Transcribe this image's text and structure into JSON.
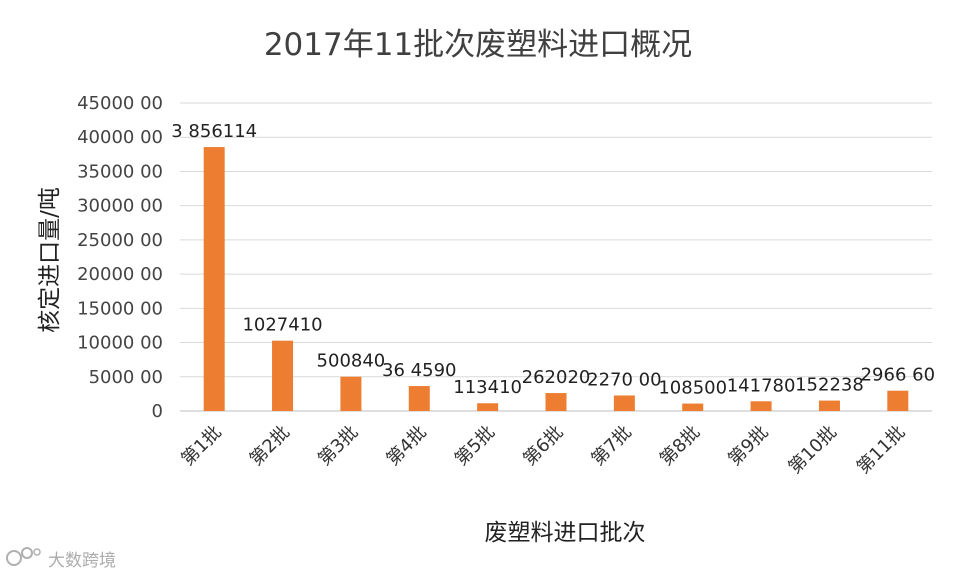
{
  "chart_data": {
    "type": "bar",
    "title": "2017年11批次废塑料进口概况",
    "xlabel": "废塑料进口批次",
    "ylabel": "核定进口量/吨",
    "ylim": [
      0,
      4500000
    ],
    "yticks": [
      0,
      500000,
      1000000,
      1500000,
      2000000,
      2500000,
      3000000,
      3500000,
      4000000,
      4500000
    ],
    "ytick_labels": [
      "0",
      "5000 00",
      "10000 00",
      "15000 00",
      "20000 00",
      "25000 00",
      "30000 00",
      "35000 00",
      "40000 00",
      "45000 00"
    ],
    "categories": [
      "第1批",
      "第2批",
      "第3批",
      "第4批",
      "第5批",
      "第6批",
      "第7批",
      "第8批",
      "第9批",
      "第10批",
      "第11批"
    ],
    "values": [
      3856114,
      1027410,
      500840,
      364590,
      113410,
      262020,
      227000,
      108500,
      141780,
      152238,
      296660
    ],
    "data_labels": [
      "3 856114",
      "1027410",
      "500840",
      "36 4590",
      "113410",
      "262020",
      "2270 00",
      "108500",
      "141780",
      "152238",
      "2966 60"
    ],
    "bar_color": "#ed7d31",
    "grid": true,
    "legend": "none"
  },
  "watermark": {
    "text": "大数跨境",
    "logo_icon": "brand-logo-icon"
  }
}
